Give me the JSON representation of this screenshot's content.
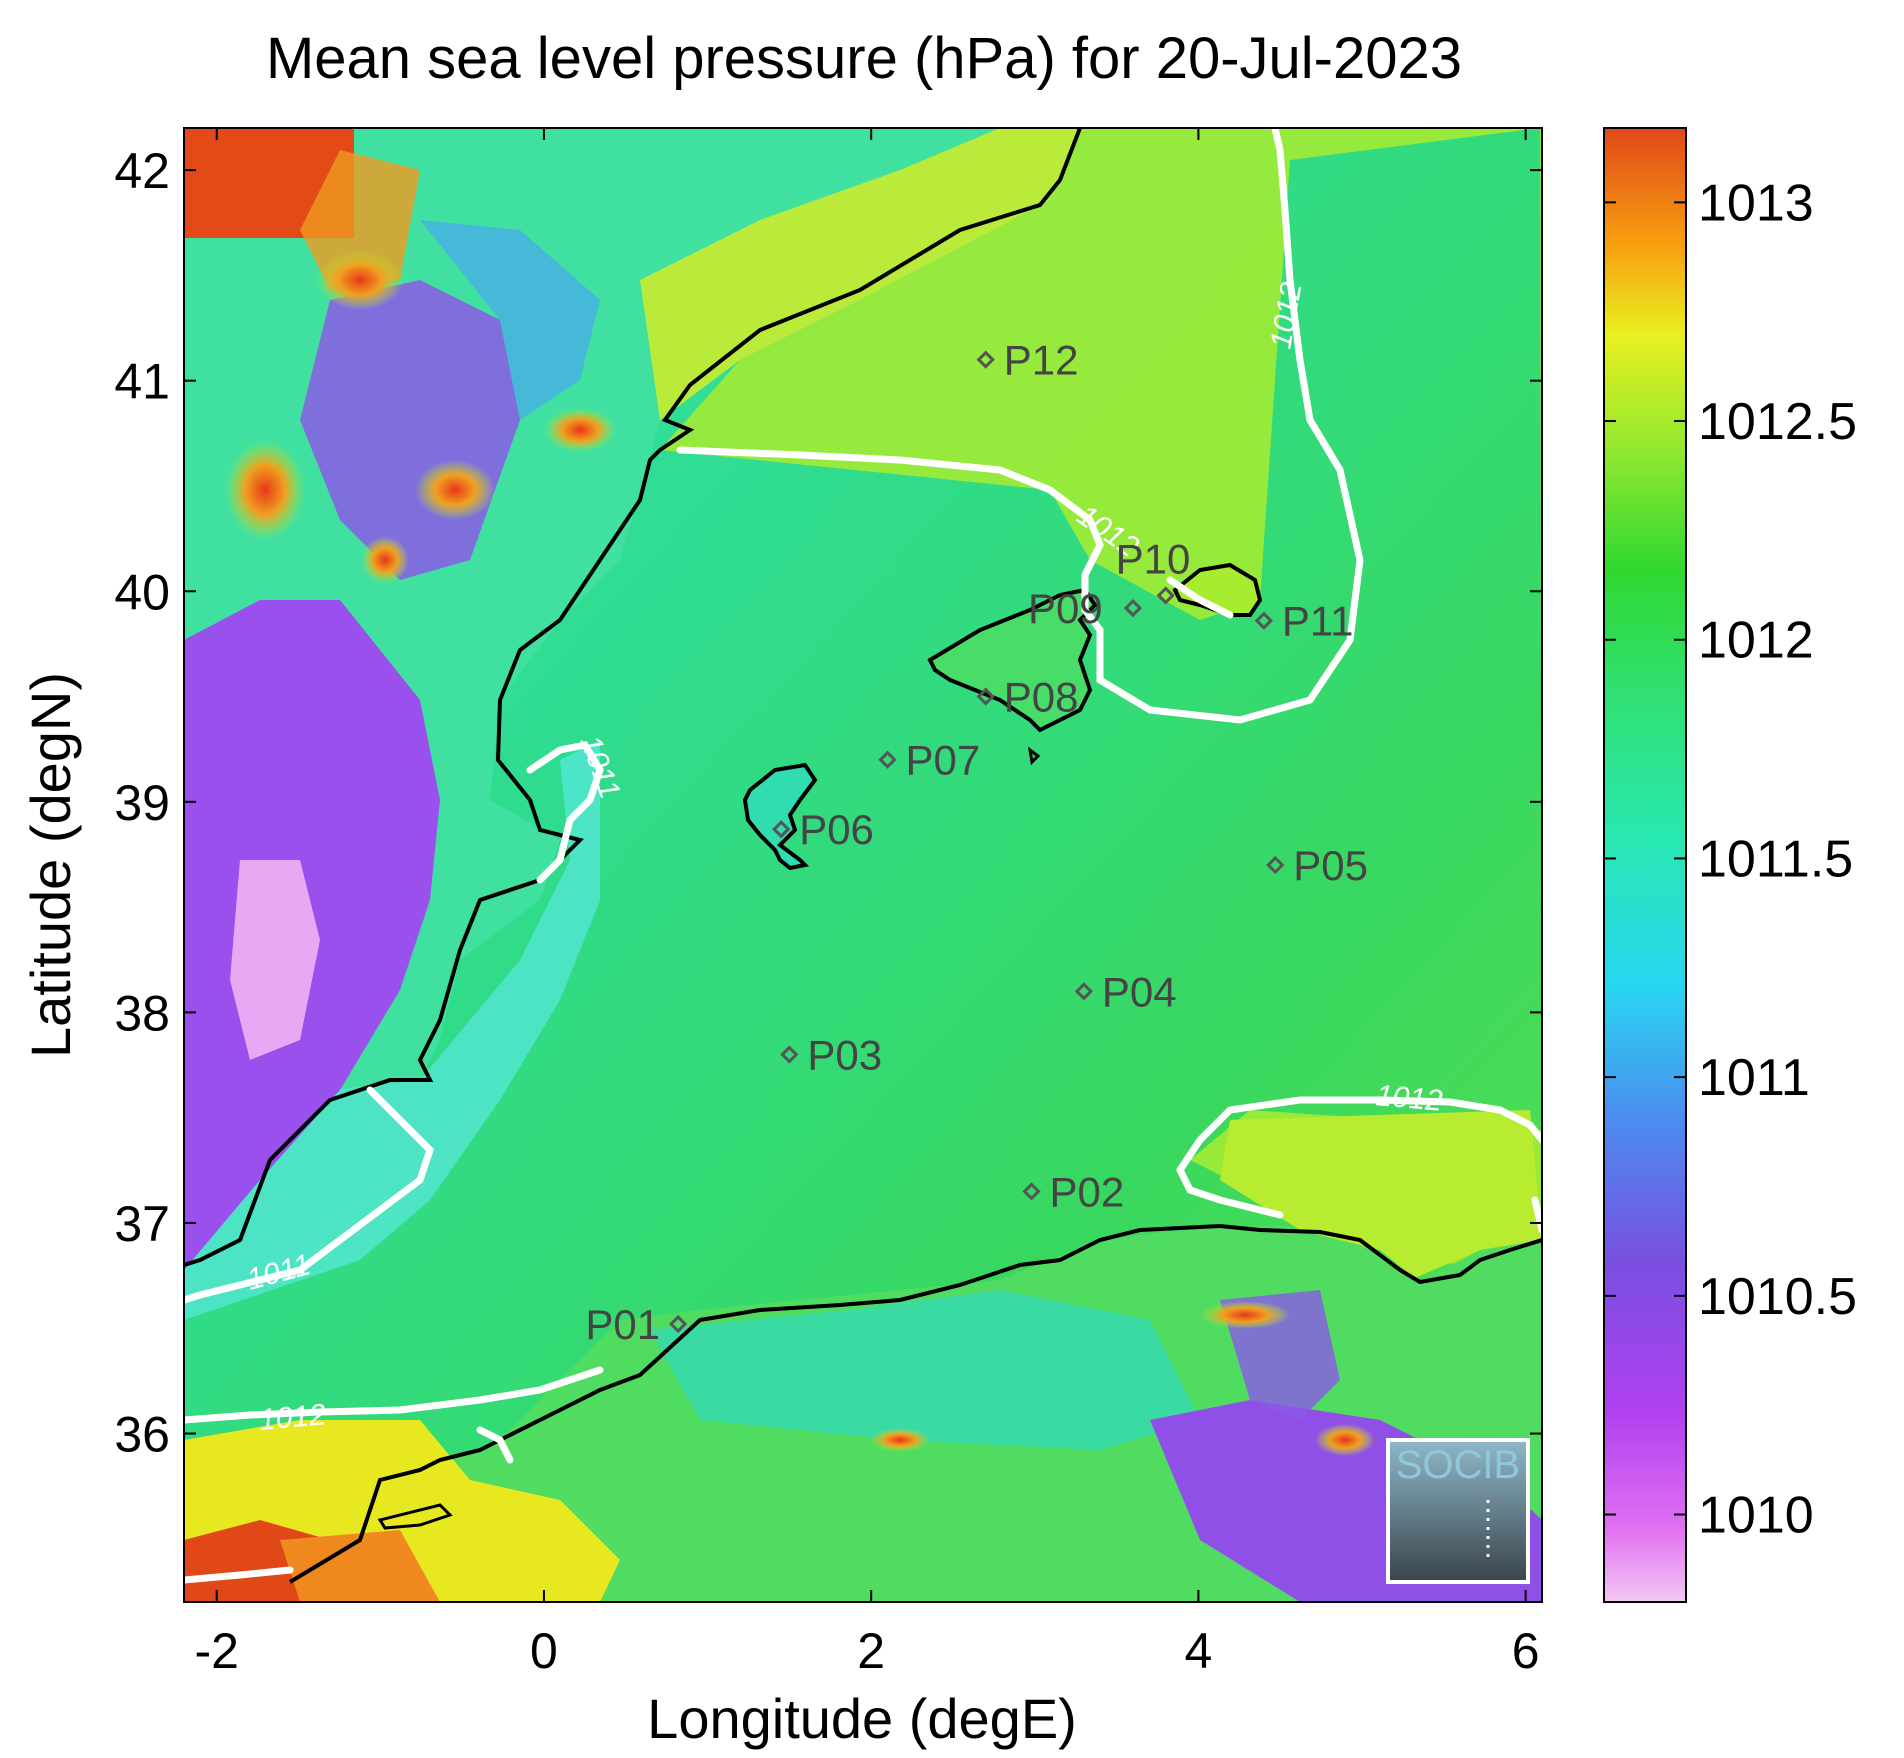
{
  "title": "Mean sea level pressure (hPa) for 20-Jul-2023",
  "axes": {
    "xlabel": "Longitude (degE)",
    "ylabel": "Latitude (degN)",
    "xlim": [
      -2.2,
      6.1
    ],
    "ylim": [
      35.2,
      42.2
    ],
    "xticks": [
      "-2",
      "0",
      "2",
      "4",
      "6"
    ],
    "yticks": [
      "36",
      "37",
      "38",
      "39",
      "40",
      "41",
      "42"
    ]
  },
  "colorbar": {
    "range": [
      1009.8,
      1013.17
    ],
    "ticks": [
      "1010",
      "1010.5",
      "1011",
      "1011.5",
      "1012",
      "1012.5",
      "1013"
    ]
  },
  "stations": [
    {
      "name": "P01",
      "lon": 0.82,
      "lat": 36.52
    },
    {
      "name": "P02",
      "lon": 2.98,
      "lat": 37.15
    },
    {
      "name": "P03",
      "lon": 1.5,
      "lat": 37.8
    },
    {
      "name": "P04",
      "lon": 3.3,
      "lat": 38.1
    },
    {
      "name": "P05",
      "lon": 4.47,
      "lat": 38.7
    },
    {
      "name": "P06",
      "lon": 1.45,
      "lat": 38.87
    },
    {
      "name": "P07",
      "lon": 2.1,
      "lat": 39.2
    },
    {
      "name": "P08",
      "lon": 2.7,
      "lat": 39.5
    },
    {
      "name": "P09",
      "lon": 3.6,
      "lat": 39.92
    },
    {
      "name": "P10",
      "lon": 3.8,
      "lat": 39.98
    },
    {
      "name": "P11",
      "lon": 4.4,
      "lat": 39.86
    },
    {
      "name": "P12",
      "lon": 2.7,
      "lat": 41.1
    }
  ],
  "contour_labels": [
    "1011",
    "1011",
    "1011",
    "1012",
    "1012",
    "1012",
    "1012"
  ],
  "logo": {
    "text": "SOCIB"
  },
  "colors": {
    "contour": "#ffffff",
    "coastline": "#000000",
    "station_marker": "#555555"
  }
}
